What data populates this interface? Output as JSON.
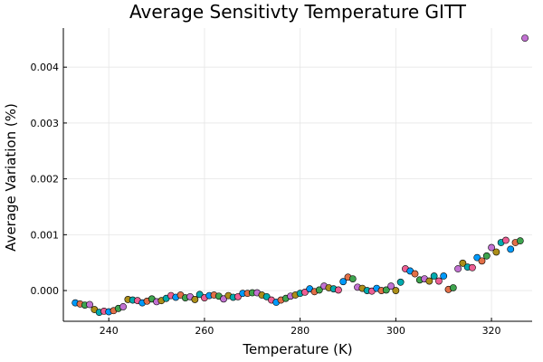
{
  "chart_data": {
    "type": "scatter",
    "title": "Average Sensitivty Temperature GITT",
    "xlabel": "Temperature (K)",
    "ylabel": "Average Variation (%)",
    "xlim": [
      230.5,
      328.5
    ],
    "ylim": [
      -0.00055,
      0.0047
    ],
    "xticks": [
      240,
      260,
      280,
      300,
      320
    ],
    "xtick_labels": [
      "240",
      "260",
      "280",
      "300",
      "320"
    ],
    "yticks": [
      0.0,
      0.001,
      0.002,
      0.003,
      0.004
    ],
    "ytick_labels": [
      "0.000",
      "0.001",
      "0.002",
      "0.003",
      "0.004"
    ],
    "grid": true,
    "legend": "none",
    "palette": [
      "#009AFA",
      "#E36F47",
      "#3EA44E",
      "#C271D2",
      "#AC8E18",
      "#00AAAE",
      "#ED5E93"
    ],
    "points": [
      {
        "x": 233,
        "y": -0.00022
      },
      {
        "x": 234,
        "y": -0.00024
      },
      {
        "x": 235,
        "y": -0.00026
      },
      {
        "x": 236,
        "y": -0.00025
      },
      {
        "x": 237,
        "y": -0.00034
      },
      {
        "x": 238,
        "y": -0.00039
      },
      {
        "x": 239,
        "y": -0.00037
      },
      {
        "x": 240,
        "y": -0.00038
      },
      {
        "x": 241,
        "y": -0.00036
      },
      {
        "x": 242,
        "y": -0.00032
      },
      {
        "x": 243,
        "y": -0.00029
      },
      {
        "x": 244,
        "y": -0.00016
      },
      {
        "x": 245,
        "y": -0.00017
      },
      {
        "x": 246,
        "y": -0.00018
      },
      {
        "x": 247,
        "y": -0.00022
      },
      {
        "x": 248,
        "y": -0.00019
      },
      {
        "x": 249,
        "y": -0.00015
      },
      {
        "x": 250,
        "y": -0.0002
      },
      {
        "x": 251,
        "y": -0.00018
      },
      {
        "x": 252,
        "y": -0.00014
      },
      {
        "x": 253,
        "y": -9e-05
      },
      {
        "x": 254,
        "y": -0.00012
      },
      {
        "x": 255,
        "y": -8e-05
      },
      {
        "x": 256,
        "y": -0.00013
      },
      {
        "x": 257,
        "y": -0.00011
      },
      {
        "x": 258,
        "y": -0.00016
      },
      {
        "x": 259,
        "y": -7e-05
      },
      {
        "x": 260,
        "y": -0.00013
      },
      {
        "x": 261,
        "y": -9e-05
      },
      {
        "x": 262,
        "y": -8e-05
      },
      {
        "x": 263,
        "y": -0.0001
      },
      {
        "x": 264,
        "y": -0.00015
      },
      {
        "x": 265,
        "y": -9e-05
      },
      {
        "x": 266,
        "y": -0.00012
      },
      {
        "x": 267,
        "y": -0.00011
      },
      {
        "x": 268,
        "y": -5e-05
      },
      {
        "x": 269,
        "y": -5e-05
      },
      {
        "x": 270,
        "y": -4e-05
      },
      {
        "x": 271,
        "y": -4e-05
      },
      {
        "x": 272,
        "y": -8e-05
      },
      {
        "x": 273,
        "y": -0.00011
      },
      {
        "x": 274,
        "y": -0.00017
      },
      {
        "x": 275,
        "y": -0.00021
      },
      {
        "x": 276,
        "y": -0.00017
      },
      {
        "x": 277,
        "y": -0.00014
      },
      {
        "x": 278,
        "y": -0.0001
      },
      {
        "x": 279,
        "y": -8e-05
      },
      {
        "x": 280,
        "y": -5e-05
      },
      {
        "x": 281,
        "y": -3e-05
      },
      {
        "x": 282,
        "y": 3e-05
      },
      {
        "x": 283,
        "y": -2e-05
      },
      {
        "x": 284,
        "y": 1e-05
      },
      {
        "x": 285,
        "y": 8e-05
      },
      {
        "x": 286,
        "y": 5e-05
      },
      {
        "x": 287,
        "y": 3e-05
      },
      {
        "x": 288,
        "y": 1e-05
      },
      {
        "x": 289,
        "y": 0.00016
      },
      {
        "x": 290,
        "y": 0.00024
      },
      {
        "x": 291,
        "y": 0.00021
      },
      {
        "x": 292,
        "y": 6e-05
      },
      {
        "x": 293,
        "y": 4e-05
      },
      {
        "x": 294,
        "y": 0.0
      },
      {
        "x": 295,
        "y": -1e-05
      },
      {
        "x": 296,
        "y": 4e-05
      },
      {
        "x": 297,
        "y": 0.0
      },
      {
        "x": 298,
        "y": 1e-05
      },
      {
        "x": 299,
        "y": 8e-05
      },
      {
        "x": 300,
        "y": 0.0
      },
      {
        "x": 301,
        "y": 0.00015
      },
      {
        "x": 302,
        "y": 0.00039
      },
      {
        "x": 303,
        "y": 0.00035
      },
      {
        "x": 304,
        "y": 0.0003
      },
      {
        "x": 305,
        "y": 0.00019
      },
      {
        "x": 306,
        "y": 0.00021
      },
      {
        "x": 307,
        "y": 0.00017
      },
      {
        "x": 308,
        "y": 0.00026
      },
      {
        "x": 309,
        "y": 0.00017
      },
      {
        "x": 310,
        "y": 0.00026
      },
      {
        "x": 311,
        "y": 2e-05
      },
      {
        "x": 312,
        "y": 5e-05
      },
      {
        "x": 313,
        "y": 0.00039
      },
      {
        "x": 314,
        "y": 0.00049
      },
      {
        "x": 315,
        "y": 0.00042
      },
      {
        "x": 316,
        "y": 0.00041
      },
      {
        "x": 317,
        "y": 0.00059
      },
      {
        "x": 318,
        "y": 0.00053
      },
      {
        "x": 319,
        "y": 0.00062
      },
      {
        "x": 320,
        "y": 0.00077
      },
      {
        "x": 321,
        "y": 0.00069
      },
      {
        "x": 322,
        "y": 0.00086
      },
      {
        "x": 323,
        "y": 0.0009
      },
      {
        "x": 324,
        "y": 0.00074
      },
      {
        "x": 325,
        "y": 0.00086
      },
      {
        "x": 326,
        "y": 0.00089
      },
      {
        "x": 327,
        "y": 0.00452
      }
    ]
  }
}
